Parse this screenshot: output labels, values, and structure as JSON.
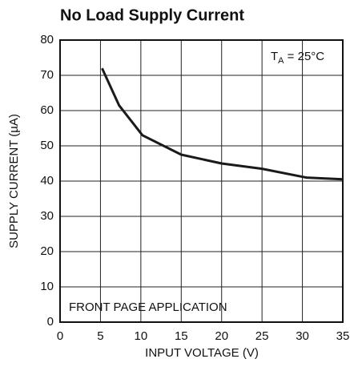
{
  "chart_data": {
    "type": "line",
    "title": "No Load Supply Current",
    "x_label": "INPUT VOLTAGE (V)",
    "y_label": "SUPPLY CURRENT (µA)",
    "annotation_temp": {
      "main": "T",
      "sub": "A",
      "rest": " = 25°C"
    },
    "annotation_app": "FRONT PAGE APPLICATION",
    "x": [
      5.2,
      7.3,
      10.2,
      15,
      20,
      25,
      30.5,
      35
    ],
    "series": [
      {
        "name": "Supply Current",
        "color": "#1a1a1a",
        "values": [
          72,
          61.5,
          53,
          47.5,
          45,
          43.5,
          41,
          40.5
        ]
      }
    ],
    "xlim": [
      0,
      35
    ],
    "xticks": [
      0,
      5,
      10,
      15,
      20,
      25,
      30,
      35
    ],
    "ylim": [
      0,
      80
    ],
    "yticks": [
      0,
      10,
      20,
      30,
      40,
      50,
      60,
      70,
      80
    ],
    "grid": true
  }
}
